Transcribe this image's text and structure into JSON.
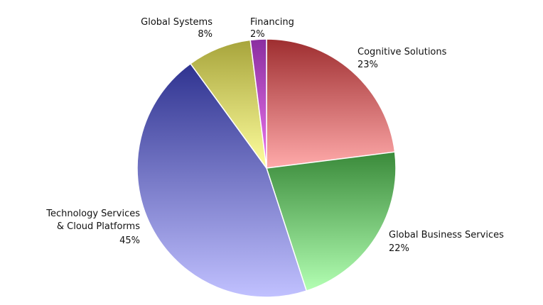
{
  "chart_data": {
    "type": "pie",
    "title": "",
    "start_angle_deg": 0,
    "direction": "clockwise",
    "slices": [
      {
        "name": "Cognitive Solutions",
        "lines": [
          "Cognitive Solutions"
        ],
        "value": 23,
        "value_label": "23%",
        "color_dark": "#9e2e30",
        "color_light": "#ffaaaa",
        "label_anchor": "start"
      },
      {
        "name": "Global Business Services",
        "lines": [
          "Global Business Services"
        ],
        "value": 22,
        "value_label": "22%",
        "color_dark": "#3a8a3a",
        "color_light": "#b3ffb3",
        "label_anchor": "start"
      },
      {
        "name": "Technology Services & Cloud Platforms",
        "lines": [
          "Technology Services",
          "& Cloud Platforms"
        ],
        "value": 45,
        "value_label": "45%",
        "color_dark": "#2f3390",
        "color_light": "#c1c1ff",
        "label_anchor": "end"
      },
      {
        "name": "Global Systems",
        "lines": [
          "Global Systems"
        ],
        "value": 8,
        "value_label": "8%",
        "color_dark": "#a7a43b",
        "color_light": "#ffff9e",
        "label_anchor": "end"
      },
      {
        "name": "Financing",
        "lines": [
          "Financing"
        ],
        "value": 2,
        "value_label": "2%",
        "color_dark": "#8a2ea0",
        "color_light": "#ee77ee",
        "label_anchor": "start"
      }
    ]
  }
}
